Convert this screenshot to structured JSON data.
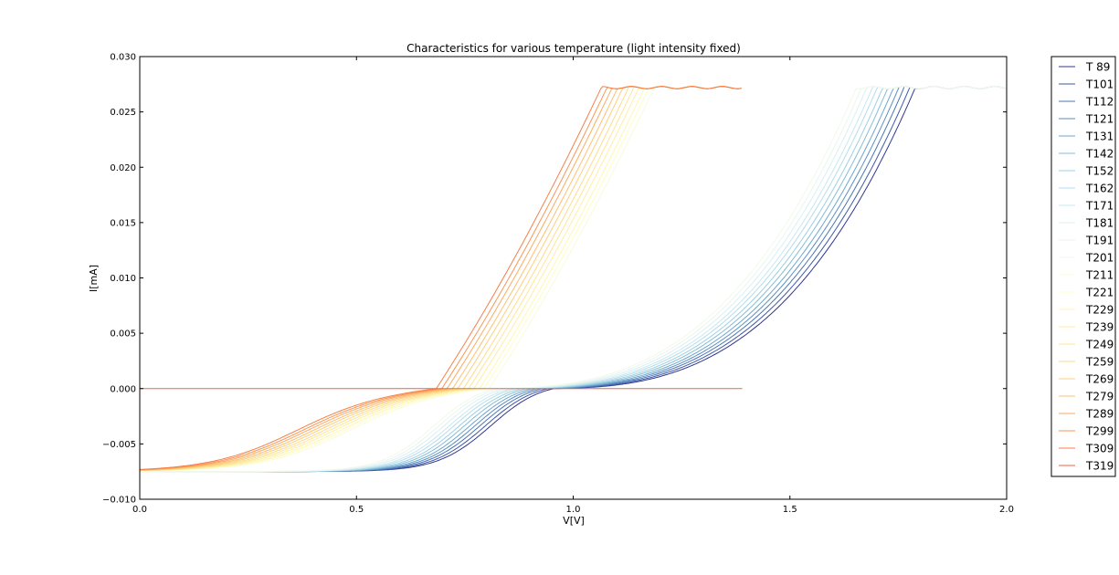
{
  "chart_data": {
    "type": "line",
    "title": "Characteristics for various temperature (light intensity fixed)",
    "xlabel": "V[V]",
    "ylabel": "I[mA]",
    "xlim": [
      0.0,
      2.0
    ],
    "ylim": [
      -0.01,
      0.03
    ],
    "x_ticks": [
      "0.0",
      "0.5",
      "1.0",
      "1.5",
      "2.0"
    ],
    "y_ticks": [
      "−0.010",
      "−0.005",
      "0.000",
      "0.005",
      "0.010",
      "0.015",
      "0.020",
      "0.025",
      "0.030"
    ],
    "grid": false,
    "legend_position": "outside-right",
    "series": [
      {
        "name": "T 89",
        "color": "#313695",
        "vmax": 2.0,
        "x0": 0.955
      },
      {
        "name": "T101",
        "color": "#3e5aa8",
        "vmax": 2.0,
        "x0": 0.942
      },
      {
        "name": "T112",
        "color": "#4a74b4",
        "vmax": 2.0,
        "x0": 0.929
      },
      {
        "name": "T121",
        "color": "#5b8ec2",
        "vmax": 2.0,
        "x0": 0.917
      },
      {
        "name": "T131",
        "color": "#6da6cd",
        "vmax": 2.0,
        "x0": 0.905
      },
      {
        "name": "T142",
        "color": "#85bcd8",
        "vmax": 2.0,
        "x0": 0.892
      },
      {
        "name": "T152",
        "color": "#9dcfe3",
        "vmax": 2.0,
        "x0": 0.88
      },
      {
        "name": "T162",
        "color": "#b3ddeb",
        "vmax": 2.0,
        "x0": 0.867
      },
      {
        "name": "T171",
        "color": "#c8e7f0",
        "vmax": 2.0,
        "x0": 0.856
      },
      {
        "name": "T181",
        "color": "#daeff2",
        "vmax": 2.0,
        "x0": 0.843
      },
      {
        "name": "T191",
        "color": "#e9f5f0",
        "vmax": 2.0,
        "x0": 0.831
      },
      {
        "name": "T201",
        "color": "#f2f9e8",
        "vmax": 2.0,
        "x0": 0.819
      },
      {
        "name": "T211",
        "color": "#f9fcd8",
        "vmax": 1.39,
        "x0": 0.806
      },
      {
        "name": "T221",
        "color": "#fefec4",
        "vmax": 1.39,
        "x0": 0.794
      },
      {
        "name": "T229",
        "color": "#fff6b2",
        "vmax": 1.39,
        "x0": 0.784
      },
      {
        "name": "T239",
        "color": "#ffeea3",
        "vmax": 1.39,
        "x0": 0.771
      },
      {
        "name": "T249",
        "color": "#fee597",
        "vmax": 1.39,
        "x0": 0.759
      },
      {
        "name": "T259",
        "color": "#fedb8a",
        "vmax": 1.39,
        "x0": 0.747
      },
      {
        "name": "T269",
        "color": "#fece7c",
        "vmax": 1.39,
        "x0": 0.734
      },
      {
        "name": "T279",
        "color": "#fdbf6f",
        "vmax": 1.39,
        "x0": 0.722
      },
      {
        "name": "T289",
        "color": "#fcaa60",
        "vmax": 1.39,
        "x0": 0.709
      },
      {
        "name": "T299",
        "color": "#f99553",
        "vmax": 1.39,
        "x0": 0.697
      },
      {
        "name": "T309",
        "color": "#f57e47",
        "vmax": 1.39,
        "x0": 0.684
      },
      {
        "name": "T319",
        "color": "#ee6540",
        "vmax": 1.39,
        "x0": 0.0,
        "flat": true
      }
    ]
  }
}
